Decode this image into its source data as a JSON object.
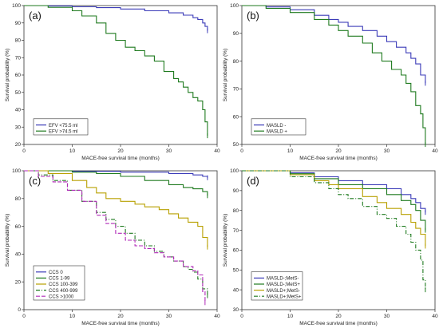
{
  "chart_data": [
    {
      "type": "line",
      "panel_label": "(a)",
      "xlabel": "MACE-free survival time (months)",
      "ylabel": "Survival probability (%)",
      "xlim": [
        0,
        40
      ],
      "ylim": [
        20,
        100
      ],
      "xticks": [
        0,
        10,
        20,
        30,
        40
      ],
      "yticks": [
        20,
        30,
        40,
        50,
        60,
        70,
        80,
        90,
        100
      ],
      "grid": false,
      "legend_position": "bottom-left",
      "series": [
        {
          "name": "EFV <75.5 ml",
          "color": "#3b3bb8",
          "dash": "",
          "x": [
            0,
            5,
            10,
            15,
            20,
            25,
            30,
            33,
            35,
            36,
            37,
            37.5,
            38
          ],
          "y": [
            100,
            99.8,
            99.3,
            98.8,
            98,
            97,
            95.8,
            94.5,
            93,
            92,
            90,
            88,
            85.5
          ]
        },
        {
          "name": "EFV >74.5 ml",
          "color": "#1e7a1e",
          "dash": "",
          "x": [
            0,
            5,
            10,
            12,
            15,
            17,
            19,
            21,
            23,
            25,
            27,
            29,
            31,
            32,
            33,
            34,
            35,
            36,
            37,
            37.5,
            38
          ],
          "y": [
            100,
            99,
            97,
            94,
            90,
            84,
            80,
            76,
            74,
            71,
            68,
            62,
            58,
            56,
            53,
            50,
            47,
            45,
            40,
            33,
            25
          ]
        }
      ]
    },
    {
      "type": "line",
      "panel_label": "(b)",
      "xlabel": "MACE-free survival time (months)",
      "ylabel": "Survival probability (%)",
      "xlim": [
        0,
        40
      ],
      "ylim": [
        50,
        100
      ],
      "xticks": [
        0,
        10,
        20,
        30,
        40
      ],
      "yticks": [
        50,
        60,
        70,
        80,
        90,
        100
      ],
      "grid": false,
      "legend_position": "bottom-left",
      "series": [
        {
          "name": "MASLD -",
          "color": "#3b3bb8",
          "dash": "",
          "x": [
            0,
            5,
            10,
            15,
            18,
            20,
            22,
            25,
            28,
            30,
            32,
            34,
            35,
            36,
            37,
            38
          ],
          "y": [
            100,
            99.5,
            98.5,
            96.5,
            95,
            94,
            92.5,
            91,
            89,
            87,
            85,
            83,
            81,
            79,
            75,
            72
          ]
        },
        {
          "name": "MASLD +",
          "color": "#1e7a1e",
          "dash": "",
          "x": [
            0,
            5,
            10,
            15,
            18,
            20,
            22,
            25,
            27,
            29,
            31,
            33,
            34,
            35,
            36,
            37,
            37.5,
            38
          ],
          "y": [
            100,
            99,
            97.5,
            95,
            93,
            91,
            89,
            86.5,
            83,
            80,
            77,
            75,
            72,
            69,
            64,
            61,
            56,
            50
          ]
        }
      ]
    },
    {
      "type": "line",
      "panel_label": "(c)",
      "xlabel": "MACE-free survival time (months)",
      "ylabel": "Survival probability (%)",
      "xlim": [
        0,
        40
      ],
      "ylim": [
        0,
        100
      ],
      "xticks": [
        0,
        10,
        20,
        30,
        40
      ],
      "yticks": [
        0,
        20,
        40,
        60,
        80,
        100
      ],
      "grid": false,
      "legend_position": "bottom-left",
      "series": [
        {
          "name": "CCS 0",
          "color": "#3b3bb8",
          "dash": "",
          "x": [
            0,
            10,
            20,
            30,
            35,
            37,
            38
          ],
          "y": [
            100,
            99.6,
            99,
            98,
            97,
            96,
            95
          ]
        },
        {
          "name": "CCS 1-99",
          "color": "#1e7a1e",
          "dash": "",
          "x": [
            0,
            10,
            15,
            20,
            25,
            30,
            33,
            35,
            37,
            38
          ],
          "y": [
            100,
            99,
            98,
            96,
            93,
            90,
            88,
            87,
            85,
            82
          ]
        },
        {
          "name": "CCS 100-399",
          "color": "#b8a000",
          "dash": "",
          "x": [
            0,
            5,
            10,
            13,
            15,
            17,
            20,
            23,
            25,
            28,
            30,
            32,
            34,
            36,
            37,
            38
          ],
          "y": [
            100,
            98,
            93,
            88,
            84,
            80,
            78,
            76,
            74,
            72,
            69,
            66,
            63,
            60,
            52,
            45
          ]
        },
        {
          "name": "CCS 400-999",
          "color": "#1e7a1e",
          "dash": "5,2,1,2",
          "x": [
            0,
            3,
            6,
            9,
            12,
            15,
            17,
            19,
            21,
            23,
            25,
            27,
            29,
            31,
            33,
            34,
            35,
            36,
            37,
            38
          ],
          "y": [
            100,
            97,
            93,
            86,
            78,
            70,
            65,
            60,
            55,
            50,
            46,
            42,
            38,
            35,
            31,
            29,
            27,
            22,
            15,
            10
          ]
        },
        {
          "name": "CCS >1000",
          "color": "#b02ab8",
          "dash": "5,2",
          "x": [
            0,
            3,
            6,
            9,
            12,
            15,
            17,
            19,
            21,
            23,
            25,
            27,
            29,
            31,
            33,
            35,
            36,
            37,
            37.5
          ],
          "y": [
            100,
            96,
            92,
            86,
            78,
            68,
            62,
            55,
            50,
            46,
            44,
            41,
            38,
            35,
            31,
            28,
            25,
            13,
            5
          ]
        }
      ]
    },
    {
      "type": "line",
      "panel_label": "(d)",
      "xlabel": "MACE-free survival time (months)",
      "ylabel": "Survival probability (%)",
      "xlim": [
        0,
        40
      ],
      "ylim": [
        30,
        100
      ],
      "xticks": [
        0,
        10,
        20,
        30,
        40
      ],
      "yticks": [
        30,
        40,
        50,
        60,
        70,
        80,
        90,
        100
      ],
      "grid": false,
      "legend_position": "bottom-left",
      "series": [
        {
          "name": "MASLD-;MetS-",
          "color": "#3b3bb8",
          "dash": "",
          "x": [
            0,
            10,
            15,
            20,
            25,
            30,
            33,
            35,
            36,
            37,
            38
          ],
          "y": [
            100,
            99,
            97,
            95,
            93,
            91,
            88,
            86,
            84,
            81,
            79
          ]
        },
        {
          "name": "MASLD-;MetS+",
          "color": "#1e7a1e",
          "dash": "",
          "x": [
            0,
            10,
            15,
            20,
            25,
            30,
            33,
            35,
            36,
            37,
            38
          ],
          "y": [
            100,
            98.5,
            96,
            93,
            91,
            88,
            85,
            83,
            80,
            75,
            70
          ]
        },
        {
          "name": "MASLD+;MetS-",
          "color": "#b8a000",
          "dash": "",
          "x": [
            0,
            10,
            15,
            18,
            20,
            25,
            28,
            30,
            33,
            35,
            36,
            37,
            38
          ],
          "y": [
            100,
            98,
            95,
            93,
            91,
            87,
            84,
            81,
            78,
            74,
            71,
            68,
            62
          ]
        },
        {
          "name": "MASLD+;MetS+",
          "color": "#1e7a1e",
          "dash": "5,2,1,2",
          "x": [
            0,
            10,
            15,
            18,
            20,
            22,
            25,
            28,
            30,
            32,
            34,
            35,
            36,
            37,
            37.5,
            38
          ],
          "y": [
            100,
            97,
            94,
            91,
            88,
            86,
            82,
            78,
            76,
            72,
            68,
            64,
            60,
            55,
            45,
            40
          ]
        }
      ]
    }
  ]
}
